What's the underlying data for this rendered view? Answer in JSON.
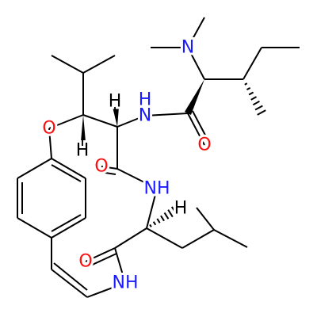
{
  "atoms": [
    {
      "label": "N"
    },
    {
      "label": "O"
    },
    {
      "label": "H"
    },
    {
      "label": "H"
    },
    {
      "label": "N"
    },
    {
      "label": "O"
    },
    {
      "label": "H"
    },
    {
      "label": "O"
    },
    {
      "label": "NH"
    },
    {
      "label": "H"
    },
    {
      "label": "O"
    },
    {
      "label": "NH"
    }
  ]
}
